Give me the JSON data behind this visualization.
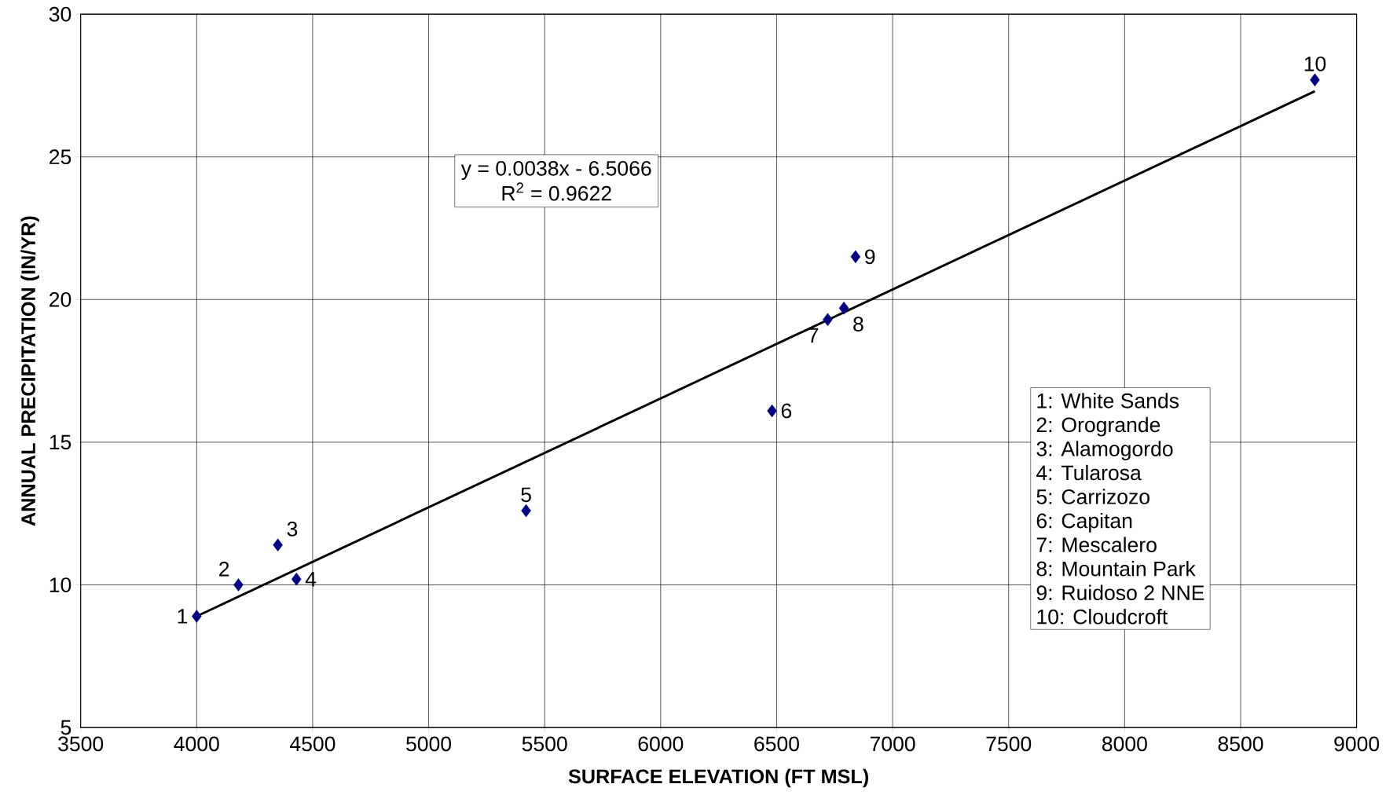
{
  "chart_data": {
    "type": "scatter",
    "xlabel": "SURFACE ELEVATION (FT MSL)",
    "ylabel": "ANNUAL PRECIPITATION (IN/YR)",
    "x": [
      4000,
      4180,
      4350,
      4430,
      5420,
      6480,
      6720,
      6790,
      6840,
      8820
    ],
    "series": [
      {
        "color": "#000080",
        "marker": "diamond",
        "values": [
          8.9,
          10.0,
          11.4,
          10.2,
          12.6,
          16.1,
          19.3,
          19.7,
          21.5,
          27.7
        ]
      },
      {
        "type": "line",
        "color": "#000000",
        "marker": "none",
        "line_style": "solid",
        "x": [
          4000,
          8820
        ],
        "values": [
          8.9,
          27.3
        ]
      }
    ],
    "xlim": [
      3500,
      9000
    ],
    "xticks": [
      3500,
      4000,
      4500,
      5000,
      5500,
      6000,
      6500,
      7000,
      7500,
      8000,
      8500,
      9000
    ],
    "ylim": [
      5,
      30
    ],
    "yticks": [
      5,
      10,
      15,
      20,
      25,
      30
    ],
    "grid": true,
    "annotations": [
      "y = 0.0038x - 6.5066",
      "R$^{2}$ = 0.9622",
      "1: White Sands",
      "2: Orogrande",
      "3: Alamogordo",
      "4: Tularosa",
      "5: Carrizozo",
      "6: Capitan",
      "7: Mescalero",
      "8: Mountain Park",
      "9: Ruidoso 2 NNE",
      "10: Cloudcroft",
      {
        "text": "1",
        "x": 4000,
        "y": 8.9
      },
      {
        "text": "2",
        "x": 4180,
        "y": 10.0
      },
      {
        "text": "3",
        "x": 4350,
        "y": 11.4
      },
      {
        "text": "4",
        "x": 4430,
        "y": 10.2
      },
      {
        "text": "5",
        "x": 5420,
        "y": 12.6
      },
      {
        "text": "6",
        "x": 6480,
        "y": 16.1
      },
      {
        "text": "7",
        "x": 6720,
        "y": 19.3
      },
      {
        "text": "8",
        "x": 6790,
        "y": 19.7
      },
      {
        "text": "9",
        "x": 6840,
        "y": 21.5
      },
      {
        "text": "10",
        "x": 8820,
        "y": 27.7
      }
    ]
  }
}
